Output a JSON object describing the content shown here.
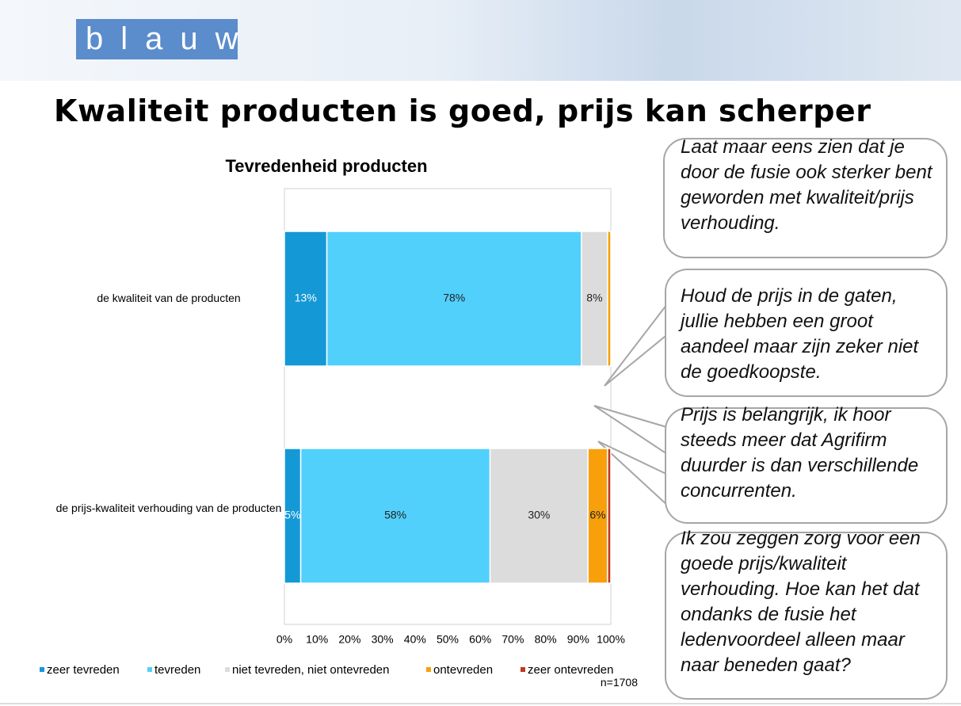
{
  "header": {
    "logo": "blauw",
    "title": "Kwaliteit producten is goed, prijs kan scherper"
  },
  "chart_data": {
    "type": "bar",
    "orientation": "horizontal",
    "stacked": true,
    "title": "Tevredenheid producten",
    "categories": [
      "de kwaliteit van de producten",
      "de prijs-kwaliteit verhouding van de producten"
    ],
    "series": [
      {
        "name": "zeer tevreden",
        "color": "#1499d6",
        "values": [
          13,
          5
        ],
        "value_labels": [
          "13%",
          "5%"
        ]
      },
      {
        "name": "tevreden",
        "color": "#52d0fc",
        "values": [
          78,
          58
        ],
        "value_labels": [
          "78%",
          "58%"
        ]
      },
      {
        "name": "niet tevreden, niet ontevreden",
        "color": "#dcdcdc",
        "values": [
          8,
          30
        ],
        "value_labels": [
          "8%",
          "30%"
        ]
      },
      {
        "name": "ontevreden",
        "color": "#f7a00c",
        "values": [
          1,
          6
        ],
        "value_labels": [
          null,
          "6%"
        ]
      },
      {
        "name": "zeer ontevreden",
        "color": "#c0391e",
        "values": [
          0,
          1
        ],
        "value_labels": [
          null,
          null
        ]
      }
    ],
    "xlim": [
      0,
      100
    ],
    "xticks": [
      {
        "value": 0,
        "label": "0%"
      },
      {
        "value": 10,
        "label": "10%"
      },
      {
        "value": 20,
        "label": "20%"
      },
      {
        "value": 30,
        "label": "30%"
      },
      {
        "value": 40,
        "label": "40%"
      },
      {
        "value": 50,
        "label": "50%"
      },
      {
        "value": 60,
        "label": "60%"
      },
      {
        "value": 70,
        "label": "70%"
      },
      {
        "value": 80,
        "label": "80%"
      },
      {
        "value": 90,
        "label": "90%"
      },
      {
        "value": 100,
        "label": "100%"
      }
    ],
    "grid": false,
    "legend": "bottom",
    "note": "n=1708"
  },
  "quotes": [
    "Laat maar eens zien dat je door de fusie ook sterker bent geworden met kwaliteit/prijs verhouding.",
    "Houd de prijs in de gaten, jullie hebben een groot aandeel maar zijn zeker niet de goedkoopste.",
    "Prijs is belangrijk, ik hoor steeds meer dat Agrifirm duurder is dan verschillende concurrenten.",
    "Ik zou zeggen zorg voor een goede prijs/kwaliteit verhouding. Hoe kan het dat ondanks de fusie het ledenvoordeel alleen maar naar beneden gaat?"
  ]
}
